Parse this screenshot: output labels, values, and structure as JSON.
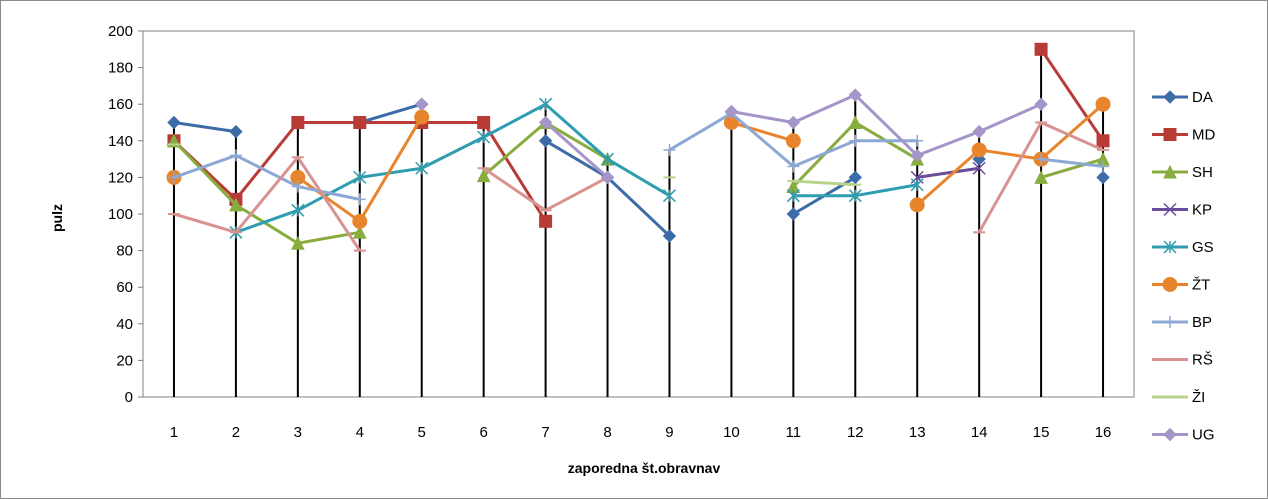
{
  "chart_data": {
    "type": "line",
    "title": "",
    "xlabel": "zaporedna št.obravnav",
    "ylabel": "pulz",
    "ylim": [
      0,
      200
    ],
    "yticks": [
      0,
      20,
      40,
      60,
      80,
      100,
      120,
      140,
      160,
      180,
      200
    ],
    "x": [
      1,
      2,
      3,
      4,
      5,
      6,
      7,
      8,
      9,
      10,
      11,
      12,
      13,
      14,
      15,
      16
    ],
    "x_labels": [
      "1",
      "2",
      "3",
      "4",
      "5",
      "6",
      "7",
      "8",
      "9",
      "10",
      "11",
      "12",
      "13",
      "14",
      "15",
      "16"
    ],
    "grid": false,
    "legend_position": "right",
    "series": [
      {
        "name": "DA",
        "color": "#3C6CA8",
        "marker": "diamond",
        "values": [
          150,
          145,
          null,
          150,
          160,
          null,
          140,
          120,
          88,
          null,
          100,
          120,
          null,
          130,
          null,
          120
        ]
      },
      {
        "name": "MD",
        "color": "#B83B36",
        "marker": "square",
        "values": [
          140,
          108,
          150,
          150,
          150,
          150,
          96,
          null,
          null,
          null,
          null,
          null,
          null,
          null,
          190,
          140
        ]
      },
      {
        "name": "SH",
        "color": "#88AC3E",
        "marker": "triangle",
        "values": [
          140,
          105,
          84,
          90,
          null,
          121,
          150,
          130,
          null,
          null,
          115,
          150,
          130,
          null,
          120,
          130
        ]
      },
      {
        "name": "KP",
        "color": "#6B4C9A",
        "marker": "x",
        "values": [
          null,
          null,
          null,
          null,
          null,
          null,
          null,
          null,
          null,
          null,
          null,
          null,
          120,
          125,
          null,
          null
        ]
      },
      {
        "name": "GS",
        "color": "#2E9DB0",
        "marker": "star",
        "values": [
          null,
          90,
          102,
          120,
          125,
          142,
          160,
          130,
          110,
          null,
          110,
          110,
          116,
          null,
          null,
          null
        ]
      },
      {
        "name": "ŽT",
        "color": "#E8852C",
        "marker": "circle",
        "values": [
          120,
          null,
          120,
          96,
          153,
          null,
          null,
          null,
          null,
          150,
          140,
          null,
          105,
          135,
          130,
          160
        ]
      },
      {
        "name": "BP",
        "color": "#8CA8D4",
        "marker": "plus",
        "values": [
          120,
          132,
          115,
          108,
          null,
          null,
          null,
          null,
          135,
          155,
          126,
          140,
          140,
          null,
          130,
          126
        ]
      },
      {
        "name": "RŠ",
        "color": "#D89391",
        "marker": "dash",
        "values": [
          100,
          90,
          131,
          80,
          null,
          125,
          102,
          120,
          null,
          null,
          null,
          null,
          null,
          90,
          150,
          135
        ]
      },
      {
        "name": "ŽI",
        "color": "#B8D48C",
        "marker": "dash",
        "values": [
          138,
          null,
          null,
          null,
          null,
          null,
          null,
          null,
          120,
          null,
          118,
          116,
          null,
          null,
          null,
          null
        ]
      },
      {
        "name": "UG",
        "color": "#A595C8",
        "marker": "diamond",
        "values": [
          null,
          null,
          null,
          null,
          160,
          null,
          150,
          120,
          null,
          156,
          150,
          165,
          132,
          145,
          160,
          null
        ]
      }
    ]
  }
}
